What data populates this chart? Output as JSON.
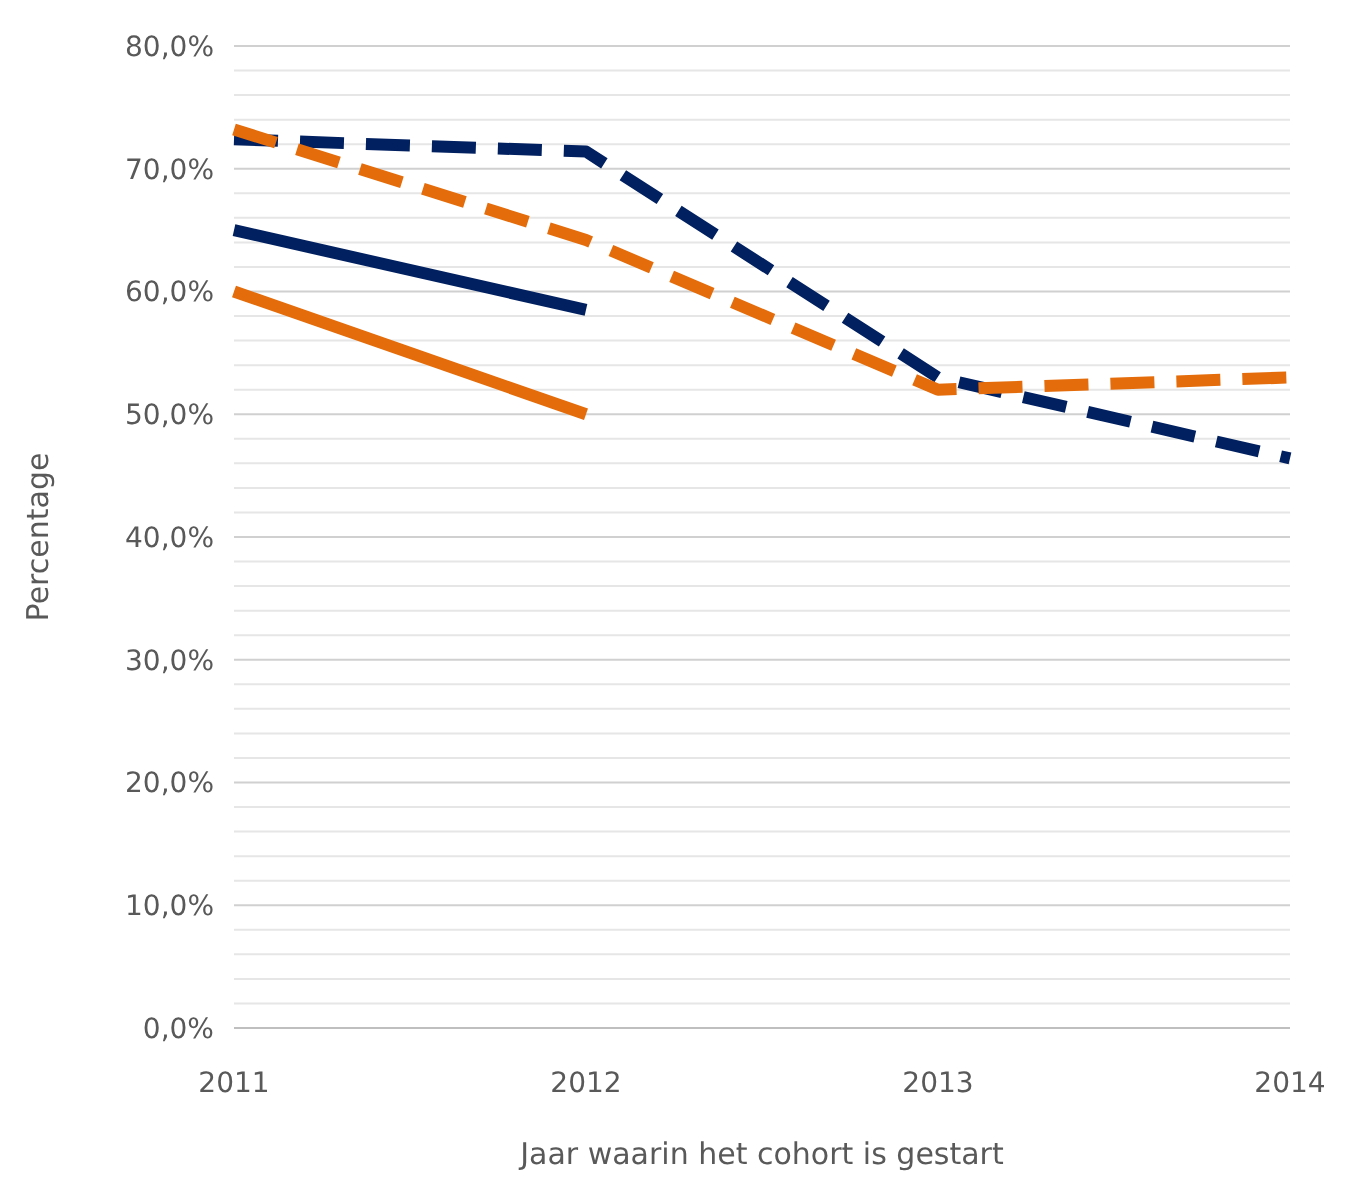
{
  "chart_data": {
    "type": "line",
    "xlabel": "Jaar waarin het cohort is gestart",
    "ylabel": "Percentage",
    "x": [
      2011,
      2012,
      2013,
      2014
    ],
    "xlim": [
      2011,
      2014
    ],
    "xticks": [
      2011,
      2012,
      2013,
      2014
    ],
    "ylim": [
      0,
      80
    ],
    "yticks": [
      {
        "value": 0,
        "label": "0,0%"
      },
      {
        "value": 2,
        "label": null
      },
      {
        "value": 4,
        "label": null
      },
      {
        "value": 6,
        "label": null
      },
      {
        "value": 8,
        "label": null
      },
      {
        "value": 10,
        "label": "10,0%"
      },
      {
        "value": 12,
        "label": null
      },
      {
        "value": 14,
        "label": null
      },
      {
        "value": 16,
        "label": null
      },
      {
        "value": 18,
        "label": null
      },
      {
        "value": 20,
        "label": "20,0%"
      },
      {
        "value": 22,
        "label": null
      },
      {
        "value": 24,
        "label": null
      },
      {
        "value": 26,
        "label": null
      },
      {
        "value": 28,
        "label": null
      },
      {
        "value": 30,
        "label": "30,0%"
      },
      {
        "value": 32,
        "label": null
      },
      {
        "value": 34,
        "label": null
      },
      {
        "value": 36,
        "label": null
      },
      {
        "value": 38,
        "label": null
      },
      {
        "value": 40,
        "label": "40,0%"
      },
      {
        "value": 42,
        "label": null
      },
      {
        "value": 44,
        "label": null
      },
      {
        "value": 46,
        "label": null
      },
      {
        "value": 48,
        "label": null
      },
      {
        "value": 50,
        "label": "50,0%"
      },
      {
        "value": 52,
        "label": null
      },
      {
        "value": 54,
        "label": null
      },
      {
        "value": 56,
        "label": null
      },
      {
        "value": 58,
        "label": null
      },
      {
        "value": 60,
        "label": "60,0%"
      },
      {
        "value": 62,
        "label": null
      },
      {
        "value": 64,
        "label": null
      },
      {
        "value": 66,
        "label": null
      },
      {
        "value": 68,
        "label": null
      },
      {
        "value": 70,
        "label": "70,0%"
      },
      {
        "value": 72,
        "label": null
      },
      {
        "value": 74,
        "label": null
      },
      {
        "value": 76,
        "label": null
      },
      {
        "value": 78,
        "label": null
      },
      {
        "value": 80,
        "label": "80,0%"
      }
    ],
    "grid": "y",
    "marker": "none",
    "series": [
      {
        "color": "#002060",
        "line_style": "solid",
        "values": [
          65,
          58.5,
          null,
          null
        ]
      },
      {
        "color": "#e46c0a",
        "line_style": "solid",
        "values": [
          60,
          50,
          null,
          null
        ]
      },
      {
        "color": "#002060",
        "line_style": "dashed",
        "values": [
          72.4,
          71.4,
          53,
          46.4
        ]
      },
      {
        "color": "#e46c0a",
        "line_style": "dashed",
        "values": [
          73.2,
          64.2,
          52,
          53
        ]
      }
    ]
  }
}
